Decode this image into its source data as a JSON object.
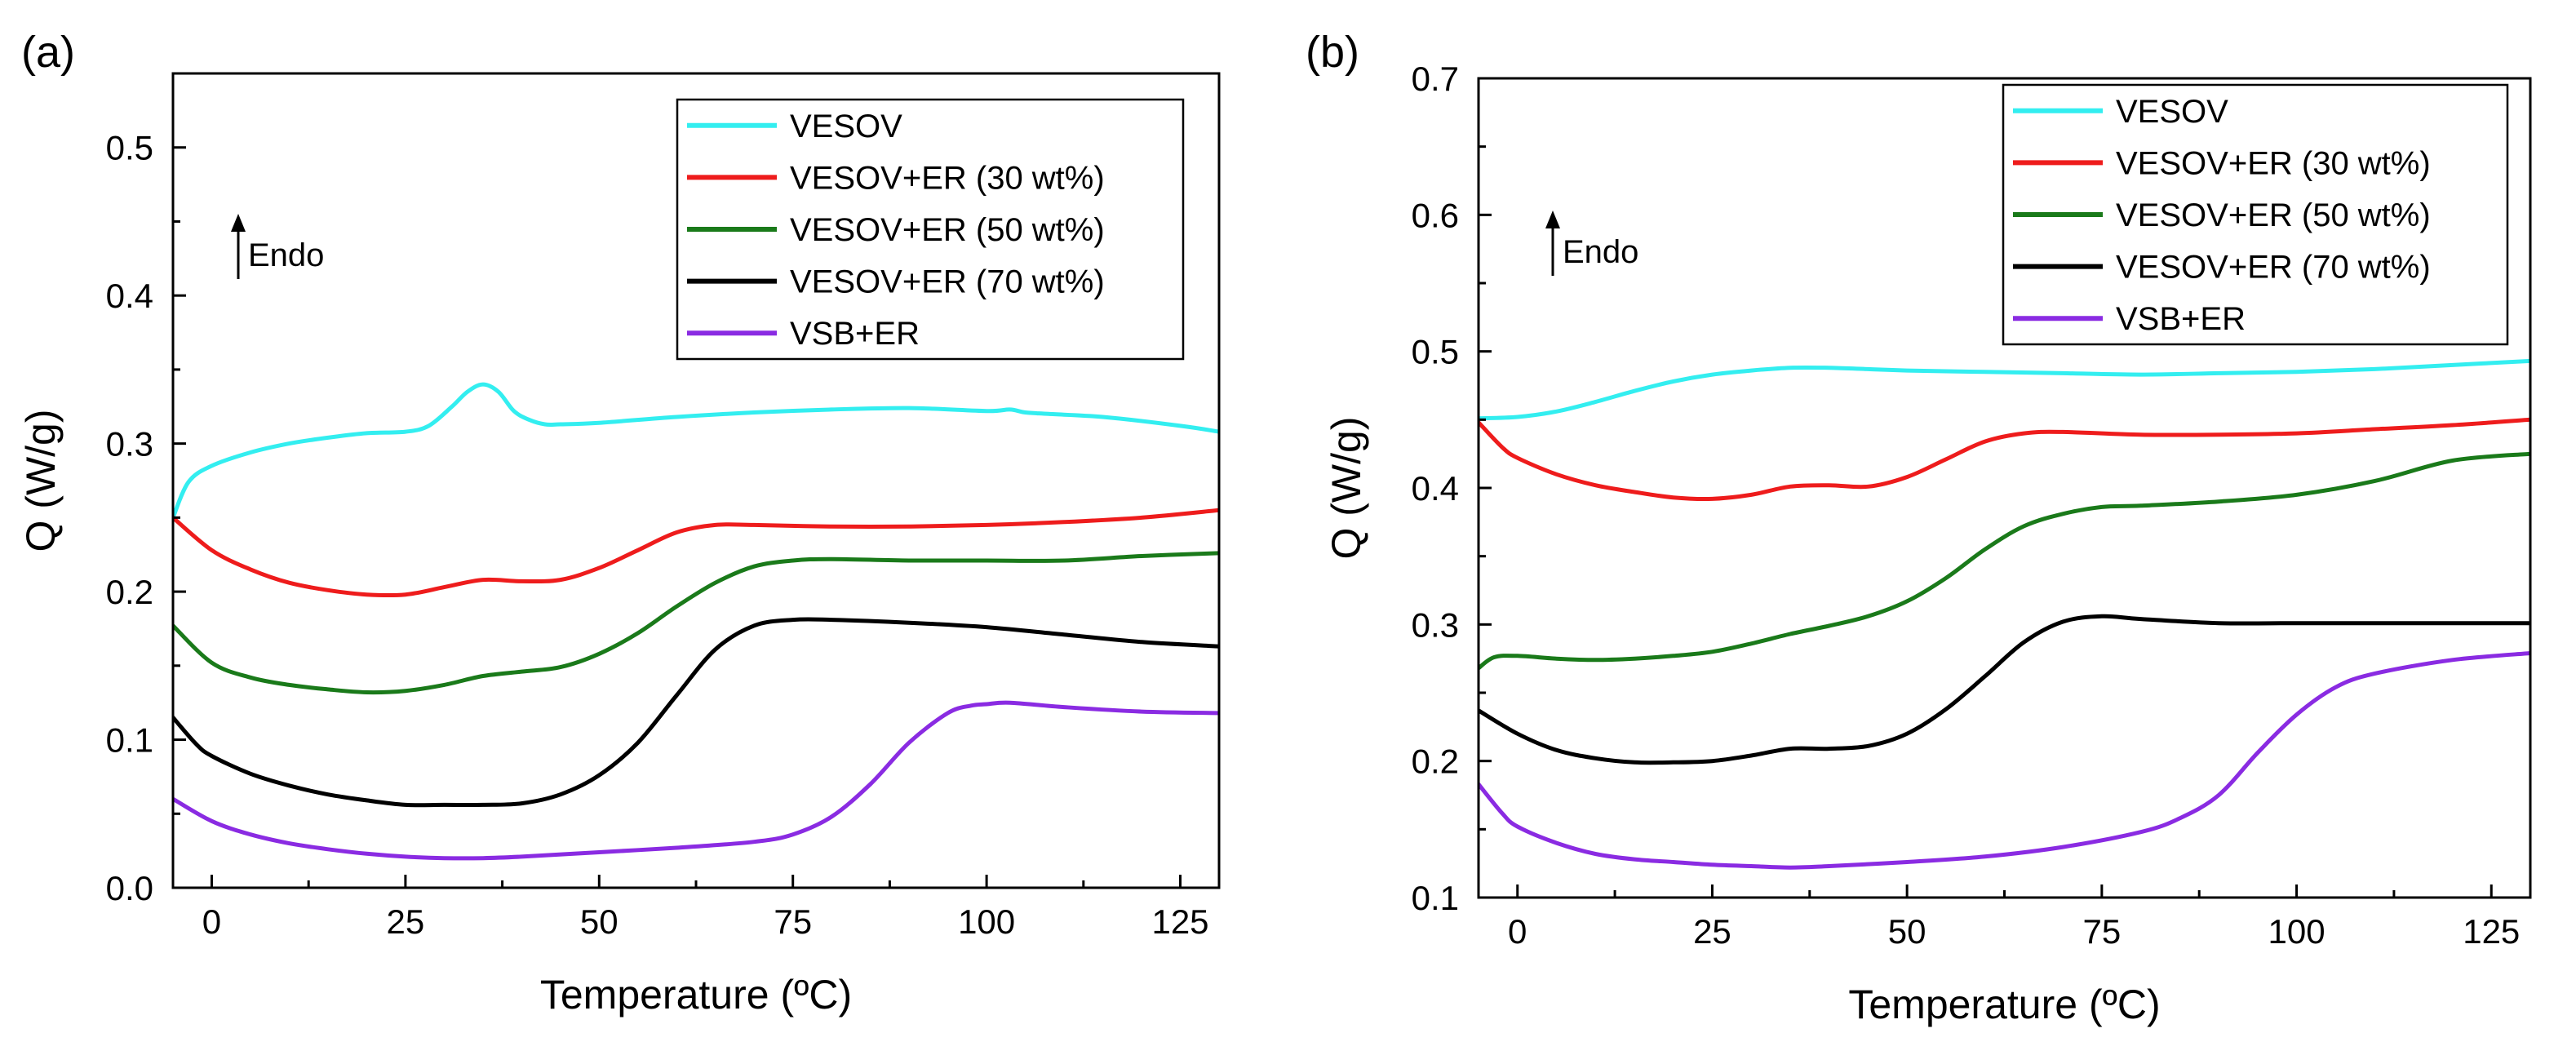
{
  "chart_data": [
    {
      "panel_label": "(a)",
      "type": "line",
      "xlabel": "Temperature (ºC)",
      "ylabel": "Q (W/g)",
      "xlim": [
        -5,
        130
      ],
      "ylim": [
        0,
        0.55
      ],
      "xticks": [
        0,
        25,
        50,
        75,
        100,
        125
      ],
      "yticks": [
        0.0,
        0.1,
        0.2,
        0.3,
        0.4,
        0.5
      ],
      "ytick_decimals": 1,
      "grid": false,
      "legend_position": "top-right",
      "annotation": "Endo",
      "series": [
        {
          "name": "VESOV",
          "color": "#33eef0",
          "x": [
            -5,
            -3,
            0,
            5,
            10,
            15,
            20,
            25,
            28,
            31,
            33,
            35,
            37,
            39,
            41,
            43,
            45,
            50,
            60,
            70,
            80,
            90,
            100,
            103,
            105,
            108,
            115,
            125,
            130
          ],
          "y": [
            0.25,
            0.274,
            0.285,
            0.294,
            0.3,
            0.304,
            0.307,
            0.308,
            0.312,
            0.325,
            0.335,
            0.34,
            0.335,
            0.322,
            0.316,
            0.313,
            0.313,
            0.314,
            0.318,
            0.321,
            0.323,
            0.324,
            0.322,
            0.323,
            0.321,
            0.32,
            0.318,
            0.312,
            0.308
          ]
        },
        {
          "name": "VESOV+ER (30 wt%)",
          "color": "#ee1c1c",
          "x": [
            -5,
            0,
            5,
            10,
            15,
            20,
            25,
            30,
            35,
            40,
            45,
            50,
            55,
            60,
            65,
            70,
            80,
            90,
            100,
            110,
            120,
            130
          ],
          "y": [
            0.25,
            0.228,
            0.215,
            0.206,
            0.201,
            0.198,
            0.198,
            0.203,
            0.208,
            0.207,
            0.208,
            0.216,
            0.228,
            0.24,
            0.245,
            0.245,
            0.244,
            0.244,
            0.245,
            0.247,
            0.25,
            0.255
          ]
        },
        {
          "name": "VESOV+ER (50 wt%)",
          "color": "#1a7a1a",
          "x": [
            -5,
            0,
            5,
            10,
            15,
            20,
            25,
            30,
            35,
            40,
            45,
            50,
            55,
            60,
            65,
            70,
            75,
            80,
            90,
            100,
            110,
            120,
            130
          ],
          "y": [
            0.177,
            0.152,
            0.142,
            0.137,
            0.134,
            0.132,
            0.133,
            0.137,
            0.143,
            0.146,
            0.149,
            0.158,
            0.172,
            0.19,
            0.206,
            0.217,
            0.221,
            0.222,
            0.221,
            0.221,
            0.221,
            0.224,
            0.226
          ]
        },
        {
          "name": "VESOV+ER (70 wt%)",
          "color": "#000000",
          "x": [
            -5,
            -2,
            0,
            5,
            10,
            15,
            20,
            25,
            30,
            35,
            40,
            45,
            50,
            55,
            60,
            65,
            70,
            75,
            80,
            90,
            100,
            110,
            120,
            130
          ],
          "y": [
            0.115,
            0.097,
            0.089,
            0.077,
            0.069,
            0.063,
            0.059,
            0.056,
            0.056,
            0.056,
            0.057,
            0.063,
            0.076,
            0.098,
            0.13,
            0.161,
            0.177,
            0.181,
            0.181,
            0.179,
            0.176,
            0.171,
            0.166,
            0.163
          ]
        },
        {
          "name": "VSB+ER",
          "color": "#8a2be2",
          "x": [
            -5,
            0,
            5,
            10,
            15,
            20,
            25,
            30,
            35,
            40,
            50,
            60,
            70,
            75,
            80,
            85,
            90,
            95,
            98,
            100,
            103,
            110,
            120,
            130
          ],
          "y": [
            0.06,
            0.045,
            0.036,
            0.03,
            0.026,
            0.023,
            0.021,
            0.02,
            0.02,
            0.021,
            0.024,
            0.027,
            0.031,
            0.036,
            0.048,
            0.07,
            0.098,
            0.118,
            0.123,
            0.124,
            0.125,
            0.122,
            0.119,
            0.118
          ]
        }
      ]
    },
    {
      "panel_label": "(b)",
      "type": "line",
      "xlabel": "Temperature (ºC)",
      "ylabel": "Q (W/g)",
      "xlim": [
        -5,
        130
      ],
      "ylim": [
        0.1,
        0.7
      ],
      "xticks": [
        0,
        25,
        50,
        75,
        100,
        125
      ],
      "yticks": [
        0.1,
        0.2,
        0.3,
        0.4,
        0.5,
        0.6,
        0.7
      ],
      "ytick_decimals": 1,
      "grid": false,
      "legend_position": "top-right",
      "annotation": "Endo",
      "series": [
        {
          "name": "VESOV",
          "color": "#33eef0",
          "x": [
            -5,
            0,
            5,
            10,
            15,
            20,
            25,
            30,
            35,
            40,
            45,
            50,
            60,
            70,
            80,
            90,
            100,
            110,
            120,
            130
          ],
          "y": [
            0.451,
            0.452,
            0.456,
            0.463,
            0.471,
            0.478,
            0.483,
            0.486,
            0.488,
            0.488,
            0.487,
            0.486,
            0.485,
            0.484,
            0.483,
            0.484,
            0.485,
            0.487,
            0.49,
            0.493
          ]
        },
        {
          "name": "VESOV+ER (30 wt%)",
          "color": "#ee1c1c",
          "x": [
            -5,
            -2,
            0,
            5,
            10,
            15,
            20,
            25,
            30,
            35,
            40,
            45,
            50,
            55,
            60,
            65,
            70,
            80,
            90,
            100,
            110,
            120,
            130
          ],
          "y": [
            0.448,
            0.43,
            0.422,
            0.41,
            0.402,
            0.397,
            0.393,
            0.392,
            0.395,
            0.401,
            0.402,
            0.401,
            0.408,
            0.421,
            0.434,
            0.44,
            0.441,
            0.439,
            0.439,
            0.44,
            0.443,
            0.446,
            0.45
          ]
        },
        {
          "name": "VESOV+ER (50 wt%)",
          "color": "#1a7a1a",
          "x": [
            -5,
            -3,
            0,
            5,
            10,
            15,
            20,
            25,
            30,
            35,
            40,
            45,
            50,
            55,
            60,
            65,
            70,
            75,
            80,
            90,
            100,
            110,
            120,
            130
          ],
          "y": [
            0.268,
            0.276,
            0.277,
            0.275,
            0.274,
            0.275,
            0.277,
            0.28,
            0.286,
            0.293,
            0.299,
            0.306,
            0.317,
            0.334,
            0.355,
            0.372,
            0.381,
            0.386,
            0.387,
            0.39,
            0.395,
            0.405,
            0.42,
            0.425
          ]
        },
        {
          "name": "VESOV+ER (70 wt%)",
          "color": "#000000",
          "x": [
            -5,
            0,
            5,
            10,
            15,
            20,
            25,
            30,
            35,
            40,
            45,
            50,
            55,
            60,
            65,
            70,
            75,
            80,
            90,
            100,
            110,
            120,
            130
          ],
          "y": [
            0.237,
            0.22,
            0.208,
            0.202,
            0.199,
            0.199,
            0.2,
            0.204,
            0.209,
            0.209,
            0.211,
            0.22,
            0.238,
            0.262,
            0.287,
            0.302,
            0.306,
            0.304,
            0.301,
            0.301,
            0.301,
            0.301,
            0.301
          ]
        },
        {
          "name": "VSB+ER",
          "color": "#8a2be2",
          "x": [
            -5,
            -2,
            0,
            5,
            10,
            15,
            20,
            25,
            30,
            35,
            40,
            50,
            60,
            70,
            80,
            85,
            90,
            95,
            100,
            105,
            110,
            120,
            130
          ],
          "y": [
            0.183,
            0.162,
            0.152,
            0.14,
            0.132,
            0.128,
            0.126,
            0.124,
            0.123,
            0.122,
            0.123,
            0.126,
            0.13,
            0.137,
            0.148,
            0.158,
            0.175,
            0.206,
            0.234,
            0.254,
            0.264,
            0.274,
            0.279
          ]
        }
      ]
    }
  ]
}
